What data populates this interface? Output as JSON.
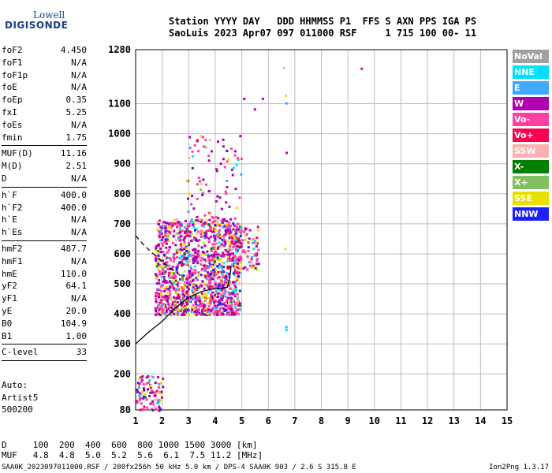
{
  "logo": {
    "line1": "Lowell",
    "line2": "DIGISONDE"
  },
  "header": {
    "row1": "Station YYYY DAY   DDD HHMMSS P1  FFS S AXN PPS IGA PS",
    "row2": "SaoLuis 2023 Apr07 097 011000 RSF     1 715 100 00- 11"
  },
  "params": {
    "group1": [
      {
        "label": "foF2",
        "value": "4.450"
      },
      {
        "label": "foF1",
        "value": "N/A"
      },
      {
        "label": "foF1p",
        "value": "N/A"
      },
      {
        "label": "foE",
        "value": "N/A"
      },
      {
        "label": "foEp",
        "value": "0.35"
      },
      {
        "label": "fxI",
        "value": "5.25"
      },
      {
        "label": "foEs",
        "value": "N/A"
      },
      {
        "label": "fmin",
        "value": "1.75"
      }
    ],
    "group2": [
      {
        "label": "MUF(D)",
        "value": "11.16"
      },
      {
        "label": "M(D)",
        "value": "2.51"
      },
      {
        "label": "D",
        "value": "N/A"
      }
    ],
    "group3": [
      {
        "label": "h`F",
        "value": "400.0"
      },
      {
        "label": "h`F2",
        "value": "400.0"
      },
      {
        "label": "h`E",
        "value": "N/A"
      },
      {
        "label": "h`Es",
        "value": "N/A"
      }
    ],
    "group4": [
      {
        "label": "hmF2",
        "value": "487.7"
      },
      {
        "label": "hmF1",
        "value": "N/A"
      },
      {
        "label": "hmE",
        "value": "110.0"
      },
      {
        "label": "yF2",
        "value": "64.1"
      },
      {
        "label": "yF1",
        "value": "N/A"
      },
      {
        "label": "yE",
        "value": "20.0"
      },
      {
        "label": "B0",
        "value": "104.9"
      },
      {
        "label": "B1",
        "value": "1.00"
      }
    ],
    "group5": [
      {
        "label": "C-level",
        "value": "33"
      }
    ]
  },
  "auto": {
    "line1": "Auto:",
    "line2": "Artist5",
    "line3": "500200"
  },
  "legend": [
    {
      "label": "NoVal",
      "color": "#a0a0a0"
    },
    {
      "label": "NNE",
      "color": "#00e0ff"
    },
    {
      "label": "E",
      "color": "#40a8ff"
    },
    {
      "label": "W",
      "color": "#b000b0"
    },
    {
      "label": "Vo-",
      "color": "#ff40a0"
    },
    {
      "label": "Vo+",
      "color": "#ff0050"
    },
    {
      "label": "SSW",
      "color": "#ffb0b0"
    },
    {
      "label": "X-",
      "color": "#008000"
    },
    {
      "label": "X+",
      "color": "#80c060"
    },
    {
      "label": "SSE",
      "color": "#e8e000"
    },
    {
      "label": "NNW",
      "color": "#2020ff"
    }
  ],
  "bottom": {
    "d_row": "D     100  200  400  600  800 1000 1500 3000 [km]",
    "muf_row": "MUF   4.8  4.8  5.0  5.2  5.6  6.1  7.5 11.2 [MHz]"
  },
  "footer": {
    "text": "SAA0K_2023097011000.RSF / 280fx256h 50 kHz 5.0 km / DPS-4 SAA0K 903 / 2.6 S 315.8 E",
    "version": "Ion2Png 1.3.17"
  },
  "chart_data": {
    "type": "scatter",
    "xlim": [
      1,
      15
    ],
    "ylim": [
      80,
      1280
    ],
    "x_ticks": [
      1,
      2,
      3,
      4,
      5,
      6,
      7,
      8,
      9,
      10,
      11,
      12,
      13,
      14,
      15
    ],
    "y_ticks": [
      80,
      200,
      300,
      400,
      500,
      600,
      700,
      800,
      900,
      1000,
      1100,
      1280
    ],
    "grid": true,
    "clusters": [
      {
        "x_range": [
          1.7,
          4.9
        ],
        "y_range": [
          400,
          720
        ],
        "density": "dense"
      },
      {
        "x_range": [
          2.9,
          5.0
        ],
        "y_range": [
          700,
          1000
        ],
        "density": "sparse"
      },
      {
        "x_range": [
          4.4,
          5.6
        ],
        "y_range": [
          550,
          700
        ],
        "density": "medium"
      },
      {
        "x_range": [
          1.0,
          2.0
        ],
        "y_range": [
          80,
          200
        ],
        "density": "sparse"
      }
    ],
    "isolated_points": [
      {
        "x": 6.55,
        "y": 1223,
        "direction": "SSW"
      },
      {
        "x": 6.62,
        "y": 1130,
        "direction": "SSE"
      },
      {
        "x": 6.64,
        "y": 1105,
        "direction": "E"
      },
      {
        "x": 6.65,
        "y": 940,
        "direction": "W"
      },
      {
        "x": 6.6,
        "y": 620,
        "direction": "SSE"
      },
      {
        "x": 6.64,
        "y": 360,
        "direction": "E"
      },
      {
        "x": 6.64,
        "y": 350,
        "direction": "NNE"
      },
      {
        "x": 9.48,
        "y": 1220,
        "direction": "Vo+"
      },
      {
        "x": 5.05,
        "y": 1120,
        "direction": "W"
      },
      {
        "x": 5.75,
        "y": 1120,
        "direction": "W"
      },
      {
        "x": 5.45,
        "y": 1085,
        "direction": "W"
      }
    ],
    "profile_line": {
      "style": "solid",
      "points": [
        [
          1.0,
          300
        ],
        [
          1.5,
          340
        ],
        [
          2.0,
          375
        ],
        [
          2.5,
          420
        ],
        [
          3.0,
          455
        ],
        [
          3.5,
          475
        ],
        [
          4.0,
          485
        ],
        [
          4.45,
          487.7
        ],
        [
          4.55,
          520
        ],
        [
          4.6,
          560
        ]
      ]
    },
    "trace_line": {
      "style": "dashed",
      "points": [
        [
          1.0,
          660
        ],
        [
          1.3,
          630
        ],
        [
          1.6,
          605
        ],
        [
          1.85,
          585
        ],
        [
          2.0,
          575
        ],
        [
          2.2,
          560
        ],
        [
          2.5,
          540
        ],
        [
          2.8,
          520
        ]
      ]
    }
  }
}
